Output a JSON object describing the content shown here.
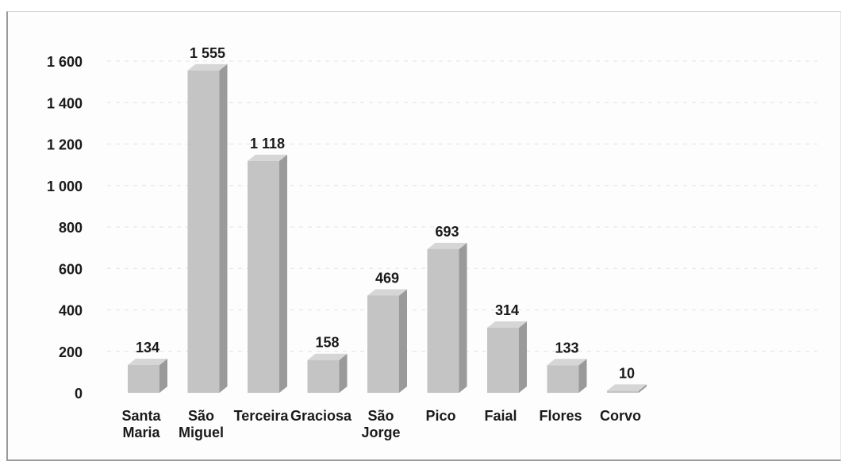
{
  "chart_data": {
    "type": "bar",
    "categories": [
      [
        "Santa",
        "Maria"
      ],
      [
        "São",
        "Miguel"
      ],
      [
        "Terceira"
      ],
      [
        "Graciosa"
      ],
      [
        "São",
        "Jorge"
      ],
      [
        "Pico"
      ],
      [
        "Faial"
      ],
      [
        "Flores"
      ],
      [
        "Corvo"
      ]
    ],
    "values": [
      134,
      1555,
      1118,
      158,
      469,
      693,
      314,
      133,
      10
    ],
    "value_labels": [
      "134",
      "1 555",
      "1 118",
      "158",
      "469",
      "693",
      "314",
      "133",
      "10"
    ],
    "y_ticks": [
      0,
      200,
      400,
      600,
      800,
      1000,
      1200,
      1400,
      1600
    ],
    "y_tick_labels": [
      "0",
      "200",
      "400",
      "600",
      "800",
      "1 000",
      "1 200",
      "1 400",
      "1 600"
    ],
    "ylim": [
      0,
      1600
    ],
    "title": "",
    "xlabel": "",
    "ylabel": "",
    "grid": true,
    "legend": "none",
    "colors": {
      "bar_front": "#c4c4c4",
      "bar_side": "#9a9a9a",
      "bar_top": "#d6d6d6"
    }
  }
}
